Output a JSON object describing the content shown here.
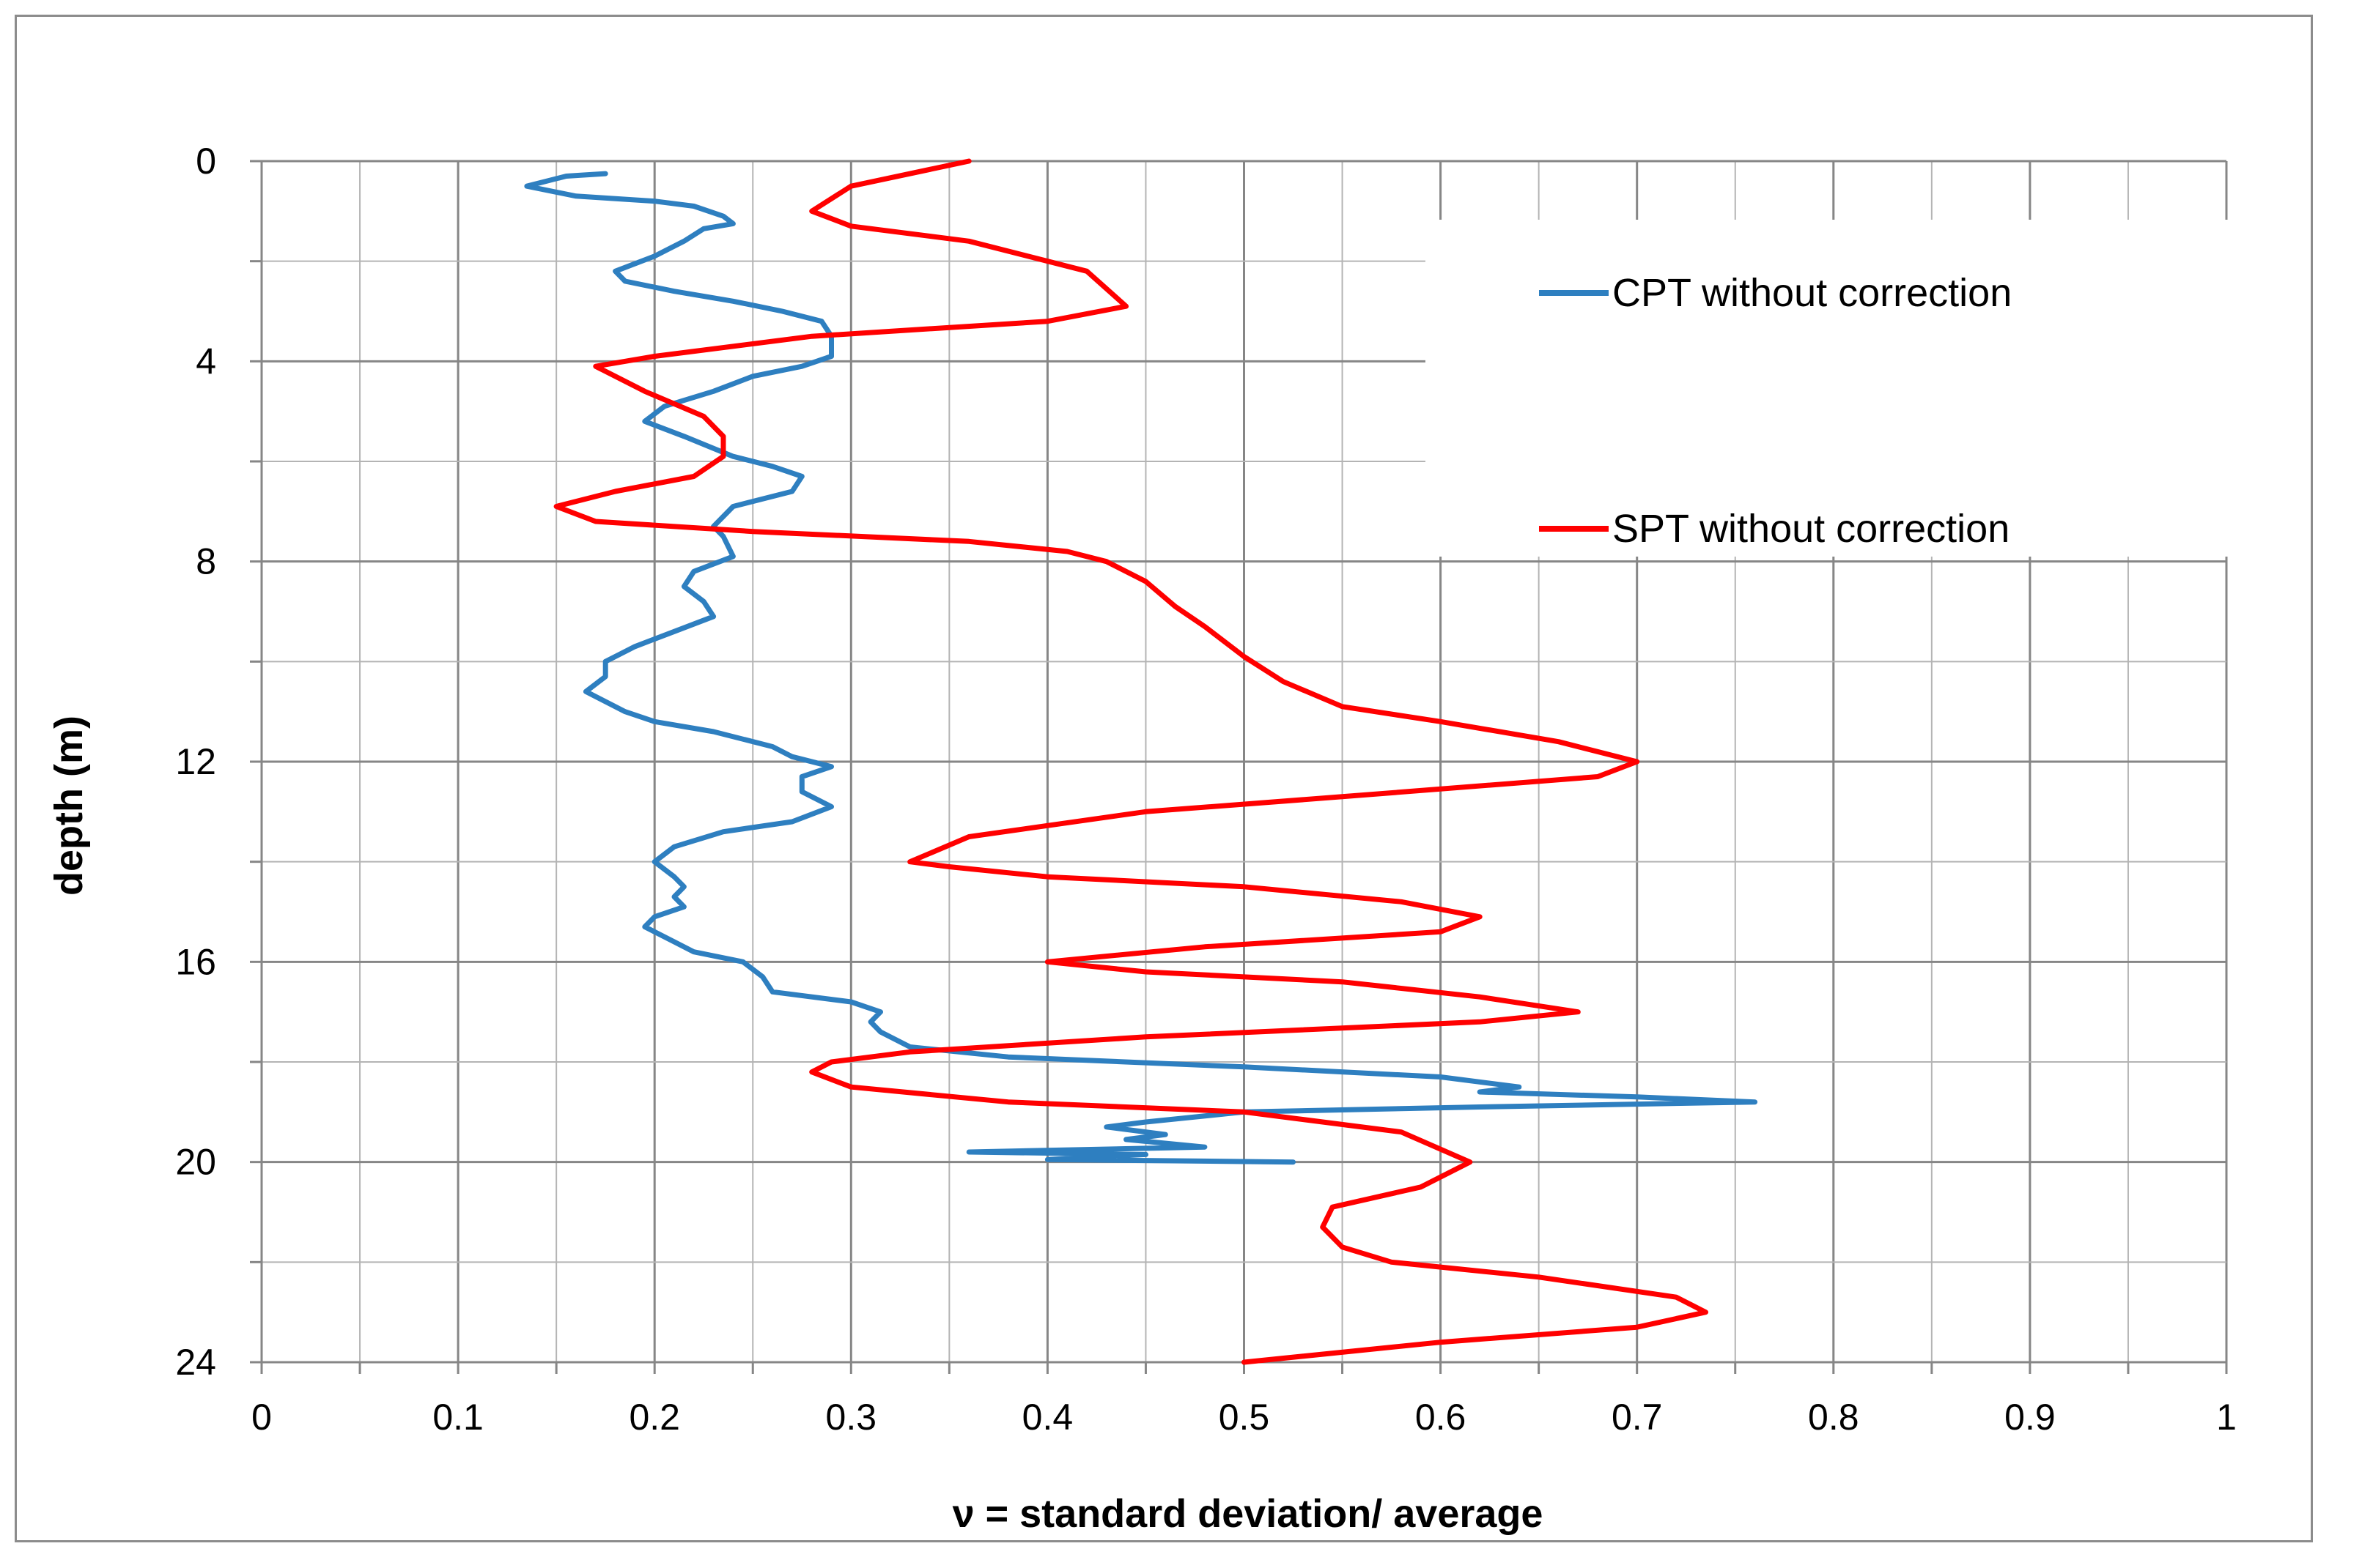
{
  "chart_data": {
    "type": "line",
    "title": "",
    "xlabel": "ν = standard deviation/ average",
    "ylabel": "depth  (m)",
    "xlim": [
      0,
      1
    ],
    "ylim": [
      0,
      24
    ],
    "y_inverted": true,
    "grid": true,
    "legend_position": "top-right",
    "x_ticks": [
      "0",
      "0.1",
      "0.2",
      "0.3",
      "0.4",
      "0.5",
      "0.6",
      "0.7",
      "0.8",
      "0.9",
      "1"
    ],
    "y_ticks": [
      "0",
      "4",
      "8",
      "12",
      "16",
      "20",
      "24"
    ],
    "series": [
      {
        "name": "CPT without correction",
        "color": "#2e7fc0",
        "points": [
          [
            0.175,
            0.25
          ],
          [
            0.155,
            0.3
          ],
          [
            0.135,
            0.5
          ],
          [
            0.16,
            0.7
          ],
          [
            0.2,
            0.8
          ],
          [
            0.22,
            0.9
          ],
          [
            0.235,
            1.1
          ],
          [
            0.24,
            1.25
          ],
          [
            0.225,
            1.35
          ],
          [
            0.215,
            1.6
          ],
          [
            0.2,
            1.9
          ],
          [
            0.18,
            2.2
          ],
          [
            0.185,
            2.4
          ],
          [
            0.21,
            2.6
          ],
          [
            0.24,
            2.8
          ],
          [
            0.265,
            3.0
          ],
          [
            0.285,
            3.2
          ],
          [
            0.29,
            3.5
          ],
          [
            0.29,
            3.9
          ],
          [
            0.275,
            4.1
          ],
          [
            0.25,
            4.3
          ],
          [
            0.23,
            4.6
          ],
          [
            0.205,
            4.9
          ],
          [
            0.195,
            5.2
          ],
          [
            0.215,
            5.5
          ],
          [
            0.24,
            5.9
          ],
          [
            0.26,
            6.1
          ],
          [
            0.275,
            6.3
          ],
          [
            0.27,
            6.6
          ],
          [
            0.24,
            6.9
          ],
          [
            0.23,
            7.3
          ],
          [
            0.235,
            7.5
          ],
          [
            0.24,
            7.9
          ],
          [
            0.22,
            8.2
          ],
          [
            0.215,
            8.5
          ],
          [
            0.225,
            8.8
          ],
          [
            0.23,
            9.1
          ],
          [
            0.21,
            9.4
          ],
          [
            0.19,
            9.7
          ],
          [
            0.175,
            10.0
          ],
          [
            0.175,
            10.3
          ],
          [
            0.165,
            10.6
          ],
          [
            0.175,
            10.8
          ],
          [
            0.185,
            11.0
          ],
          [
            0.2,
            11.2
          ],
          [
            0.23,
            11.4
          ],
          [
            0.26,
            11.7
          ],
          [
            0.27,
            11.9
          ],
          [
            0.29,
            12.1
          ],
          [
            0.275,
            12.3
          ],
          [
            0.275,
            12.6
          ],
          [
            0.29,
            12.9
          ],
          [
            0.27,
            13.2
          ],
          [
            0.235,
            13.4
          ],
          [
            0.21,
            13.7
          ],
          [
            0.2,
            14.0
          ],
          [
            0.21,
            14.3
          ],
          [
            0.215,
            14.5
          ],
          [
            0.21,
            14.7
          ],
          [
            0.215,
            14.9
          ],
          [
            0.2,
            15.1
          ],
          [
            0.195,
            15.3
          ],
          [
            0.21,
            15.6
          ],
          [
            0.22,
            15.8
          ],
          [
            0.245,
            16.0
          ],
          [
            0.255,
            16.3
          ],
          [
            0.26,
            16.6
          ],
          [
            0.3,
            16.8
          ],
          [
            0.315,
            17.0
          ],
          [
            0.31,
            17.2
          ],
          [
            0.315,
            17.4
          ],
          [
            0.33,
            17.7
          ],
          [
            0.38,
            17.9
          ],
          [
            0.5,
            18.1
          ],
          [
            0.6,
            18.3
          ],
          [
            0.64,
            18.5
          ],
          [
            0.62,
            18.6
          ],
          [
            0.7,
            18.7
          ],
          [
            0.76,
            18.8
          ],
          [
            0.62,
            18.9
          ],
          [
            0.5,
            19.0
          ],
          [
            0.45,
            19.2
          ],
          [
            0.43,
            19.3
          ],
          [
            0.46,
            19.45
          ],
          [
            0.44,
            19.55
          ],
          [
            0.48,
            19.7
          ],
          [
            0.36,
            19.8
          ],
          [
            0.45,
            19.85
          ],
          [
            0.4,
            19.95
          ],
          [
            0.525,
            20.0
          ]
        ]
      },
      {
        "name": "SPT without correction",
        "color": "#ff0000",
        "points": [
          [
            0.36,
            0.0
          ],
          [
            0.3,
            0.5
          ],
          [
            0.28,
            1.0
          ],
          [
            0.3,
            1.3
          ],
          [
            0.36,
            1.6
          ],
          [
            0.42,
            2.2
          ],
          [
            0.44,
            2.9
          ],
          [
            0.4,
            3.2
          ],
          [
            0.28,
            3.5
          ],
          [
            0.2,
            3.9
          ],
          [
            0.17,
            4.1
          ],
          [
            0.195,
            4.6
          ],
          [
            0.225,
            5.1
          ],
          [
            0.235,
            5.5
          ],
          [
            0.235,
            5.9
          ],
          [
            0.22,
            6.3
          ],
          [
            0.18,
            6.6
          ],
          [
            0.15,
            6.9
          ],
          [
            0.17,
            7.2
          ],
          [
            0.25,
            7.4
          ],
          [
            0.36,
            7.6
          ],
          [
            0.41,
            7.8
          ],
          [
            0.43,
            8.0
          ],
          [
            0.45,
            8.4
          ],
          [
            0.465,
            8.9
          ],
          [
            0.48,
            9.3
          ],
          [
            0.5,
            9.9
          ],
          [
            0.52,
            10.4
          ],
          [
            0.55,
            10.9
          ],
          [
            0.6,
            11.2
          ],
          [
            0.66,
            11.6
          ],
          [
            0.7,
            12.0
          ],
          [
            0.68,
            12.3
          ],
          [
            0.55,
            12.7
          ],
          [
            0.45,
            13.0
          ],
          [
            0.36,
            13.5
          ],
          [
            0.33,
            14.0
          ],
          [
            0.35,
            14.1
          ],
          [
            0.4,
            14.3
          ],
          [
            0.5,
            14.5
          ],
          [
            0.58,
            14.8
          ],
          [
            0.62,
            15.1
          ],
          [
            0.6,
            15.4
          ],
          [
            0.48,
            15.7
          ],
          [
            0.4,
            16.0
          ],
          [
            0.45,
            16.2
          ],
          [
            0.55,
            16.4
          ],
          [
            0.62,
            16.7
          ],
          [
            0.67,
            17.0
          ],
          [
            0.62,
            17.2
          ],
          [
            0.45,
            17.5
          ],
          [
            0.33,
            17.8
          ],
          [
            0.29,
            18.0
          ],
          [
            0.28,
            18.2
          ],
          [
            0.3,
            18.5
          ],
          [
            0.38,
            18.8
          ],
          [
            0.5,
            19.0
          ],
          [
            0.58,
            19.4
          ],
          [
            0.615,
            20.0
          ],
          [
            0.59,
            20.5
          ],
          [
            0.545,
            20.9
          ],
          [
            0.54,
            21.3
          ],
          [
            0.55,
            21.7
          ],
          [
            0.575,
            22.0
          ],
          [
            0.65,
            22.3
          ],
          [
            0.72,
            22.7
          ],
          [
            0.735,
            23.0
          ],
          [
            0.7,
            23.3
          ],
          [
            0.6,
            23.6
          ],
          [
            0.5,
            24.0
          ]
        ]
      }
    ]
  }
}
